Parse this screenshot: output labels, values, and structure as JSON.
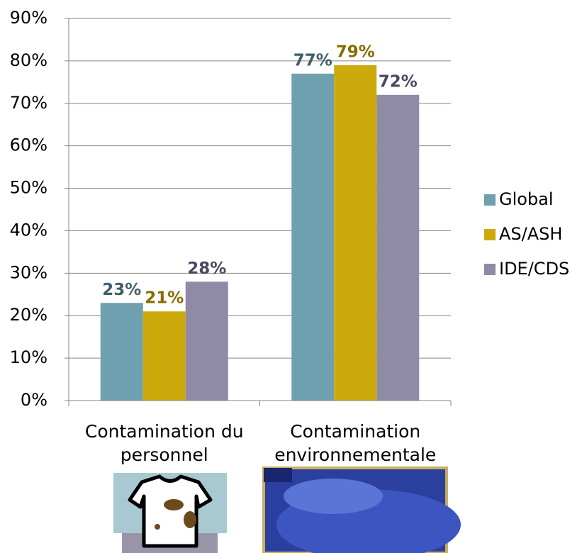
{
  "chart_data": {
    "type": "bar",
    "categories": [
      "Contamination du personnel",
      "Contamination environnementale"
    ],
    "series": [
      {
        "name": "Global",
        "color": "#6fa0b0",
        "label_color": "#3f5f6b",
        "values": [
          23,
          77
        ],
        "value_labels": [
          "23%",
          "77%"
        ]
      },
      {
        "name": "AS/ASH",
        "color": "#ccaa0c",
        "label_color": "#876c00",
        "values": [
          21,
          79
        ],
        "value_labels": [
          "21%",
          "79%"
        ]
      },
      {
        "name": "IDE/CDS",
        "color": "#8f8aa6",
        "label_color": "#4b4763",
        "values": [
          28,
          72
        ],
        "value_labels": [
          "28%",
          "72%"
        ]
      }
    ],
    "ylim": [
      0,
      90
    ],
    "yticks": [
      {
        "value": 0,
        "label": "0%"
      },
      {
        "value": 10,
        "label": "10%"
      },
      {
        "value": 20,
        "label": "20%"
      },
      {
        "value": 30,
        "label": "30%"
      },
      {
        "value": 40,
        "label": "40%"
      },
      {
        "value": 50,
        "label": "50%"
      },
      {
        "value": 60,
        "label": "60%"
      },
      {
        "value": 70,
        "label": "70%"
      },
      {
        "value": 80,
        "label": "80%"
      },
      {
        "value": 90,
        "label": "90%"
      }
    ],
    "grid": true,
    "legend": "right"
  }
}
